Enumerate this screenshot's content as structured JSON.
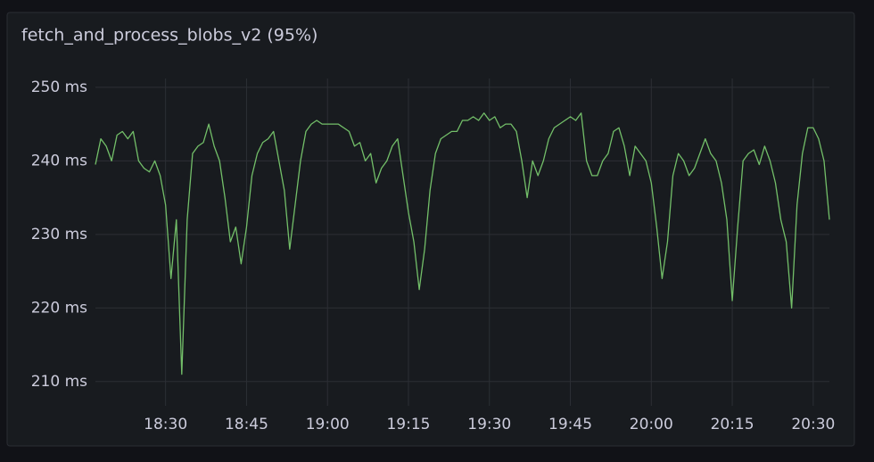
{
  "chart_data": {
    "type": "line",
    "title": "fetch_and_process_blobs_v2 (95%)",
    "x": [
      "18:17",
      "18:18",
      "18:19",
      "18:20",
      "18:21",
      "18:22",
      "18:23",
      "18:24",
      "18:25",
      "18:26",
      "18:27",
      "18:28",
      "18:29",
      "18:30",
      "18:31",
      "18:32",
      "18:33",
      "18:34",
      "18:35",
      "18:36",
      "18:37",
      "18:38",
      "18:39",
      "18:40",
      "18:41",
      "18:42",
      "18:43",
      "18:44",
      "18:45",
      "18:46",
      "18:47",
      "18:48",
      "18:49",
      "18:50",
      "18:51",
      "18:52",
      "18:53",
      "18:54",
      "18:55",
      "18:56",
      "18:57",
      "18:58",
      "18:59",
      "19:00",
      "19:01",
      "19:02",
      "19:03",
      "19:04",
      "19:05",
      "19:06",
      "19:07",
      "19:08",
      "19:09",
      "19:10",
      "19:11",
      "19:12",
      "19:13",
      "19:14",
      "19:15",
      "19:16",
      "19:17",
      "19:18",
      "19:19",
      "19:20",
      "19:21",
      "19:22",
      "19:23",
      "19:24",
      "19:25",
      "19:26",
      "19:27",
      "19:28",
      "19:29",
      "19:30",
      "19:31",
      "19:32",
      "19:33",
      "19:34",
      "19:35",
      "19:36",
      "19:37",
      "19:38",
      "19:39",
      "19:40",
      "19:41",
      "19:42",
      "19:43",
      "19:44",
      "19:45",
      "19:46",
      "19:47",
      "19:48",
      "19:49",
      "19:50",
      "19:51",
      "19:52",
      "19:53",
      "19:54",
      "19:55",
      "19:56",
      "19:57",
      "19:58",
      "19:59",
      "20:00",
      "20:01",
      "20:02",
      "20:03",
      "20:04",
      "20:05",
      "20:06",
      "20:07",
      "20:08",
      "20:09",
      "20:10",
      "20:11",
      "20:12",
      "20:13",
      "20:14",
      "20:15",
      "20:16",
      "20:17",
      "20:18",
      "20:19",
      "20:20",
      "20:21",
      "20:22",
      "20:23",
      "20:24",
      "20:25",
      "20:26",
      "20:27",
      "20:28",
      "20:29",
      "20:30",
      "20:31",
      "20:32",
      "20:33"
    ],
    "series": [
      {
        "color": "#73bf69",
        "values": [
          239.5,
          243,
          242,
          240,
          243.5,
          244,
          243,
          244,
          240,
          239,
          238.5,
          240,
          238,
          234,
          224,
          232,
          211,
          232,
          241,
          242,
          242.5,
          245,
          242,
          240,
          235,
          229,
          231,
          226,
          231,
          238,
          241,
          242.5,
          243,
          244,
          240,
          236,
          228,
          234,
          240,
          244,
          245,
          245.5,
          245,
          245,
          245,
          245,
          244.5,
          244,
          242,
          242.5,
          240,
          241,
          237,
          239,
          240,
          242,
          243,
          238,
          233,
          229,
          222.5,
          228,
          236,
          241,
          243,
          243.5,
          244,
          244,
          245.5,
          245.5,
          246,
          245.5,
          246.5,
          245.5,
          246,
          244.5,
          245,
          245,
          244,
          240,
          235,
          240,
          238,
          240,
          243,
          244.5,
          245,
          245.5,
          246,
          245.5,
          246.5,
          240,
          238,
          238,
          240,
          241,
          244,
          244.5,
          242,
          238,
          242,
          241,
          240,
          237,
          231,
          224,
          229,
          238,
          241,
          240,
          238,
          239,
          241,
          243,
          241,
          240,
          237,
          232,
          221,
          231,
          240,
          241,
          241.5,
          239.5,
          242,
          240,
          237,
          232,
          229,
          220,
          234,
          241,
          244.5,
          244.5,
          243,
          240,
          232
        ]
      }
    ],
    "xlim": [
      "18:17",
      "20:33"
    ],
    "xticks": [
      "18:30",
      "18:45",
      "19:00",
      "19:15",
      "19:30",
      "19:45",
      "20:00",
      "20:15",
      "20:30"
    ],
    "ylim": [
      206.7,
      251.2
    ],
    "yticks": [
      {
        "value": 210,
        "label": "210 ms"
      },
      {
        "value": 220,
        "label": "220 ms"
      },
      {
        "value": 230,
        "label": "230 ms"
      },
      {
        "value": 240,
        "label": "240 ms"
      },
      {
        "value": 250,
        "label": "250 ms"
      }
    ],
    "grid": true
  }
}
